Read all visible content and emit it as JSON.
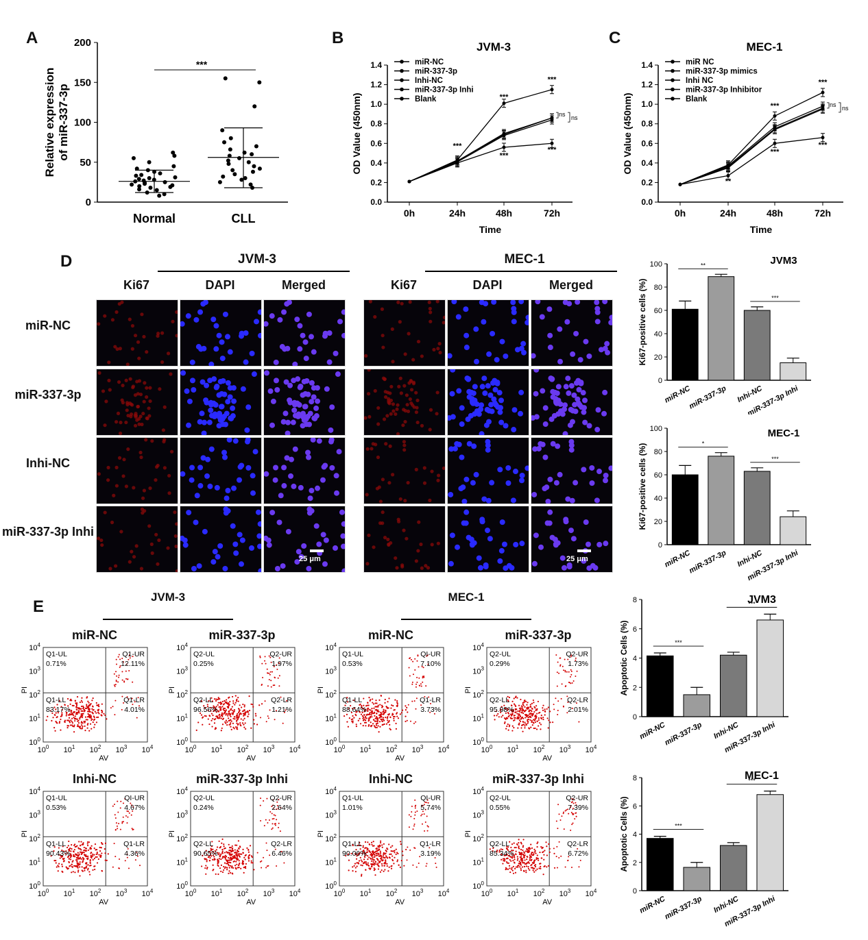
{
  "panels": {
    "A": "A",
    "B": "B",
    "C": "C",
    "D": "D",
    "E": "E"
  },
  "colors": {
    "red": "#d40000",
    "blue": "#1b1bff",
    "black": "#000000",
    "bar_dark": "#000000",
    "bar_mid": "#9c9c9c",
    "bar_gray": "#7a7a7a",
    "bar_light": "#d7d7d7"
  },
  "chart_data": [
    {
      "id": "A",
      "type": "scatter",
      "ylabel_line1": "Relative expression",
      "ylabel_line2": "of miR-337-3p",
      "categories": [
        "Normal",
        "CLL"
      ],
      "yticks": [
        "0",
        "50",
        "100",
        "150",
        "200"
      ],
      "ylim": [
        0,
        200
      ],
      "significance": "***",
      "summary": [
        {
          "name": "Normal",
          "mean": 26,
          "sd_low": 12,
          "sd_high": 40
        },
        {
          "name": "CLL",
          "mean": 56,
          "sd_low": 18,
          "sd_high": 93
        }
      ],
      "points": {
        "Normal": [
          62,
          58,
          55,
          50,
          45,
          42,
          40,
          38,
          36,
          34,
          33,
          31,
          30,
          29,
          28,
          27,
          26,
          25,
          24,
          23,
          22,
          21,
          20,
          19,
          18,
          16,
          15,
          12,
          10,
          8
        ],
        "CLL": [
          155,
          150,
          120,
          90,
          80,
          75,
          70,
          66,
          62,
          60,
          58,
          55,
          52,
          50,
          48,
          45,
          42,
          40,
          38,
          35,
          32,
          30,
          28,
          25,
          22,
          18
        ]
      }
    },
    {
      "id": "B",
      "type": "line",
      "title": "JVM-3",
      "xlabel": "Time",
      "ylabel": "OD Value (450nm)",
      "categories": [
        "0h",
        "24h",
        "48h",
        "72h"
      ],
      "yticks": [
        "0.0",
        "0.2",
        "0.4",
        "0.6",
        "0.8",
        "1.0",
        "1.2",
        "1.4"
      ],
      "ylim": [
        0,
        1.4
      ],
      "series": [
        {
          "name": "miR-NC",
          "values": [
            0.21,
            0.42,
            0.69,
            0.86
          ]
        },
        {
          "name": "miR-337-3p",
          "values": [
            0.21,
            0.43,
            1.01,
            1.15
          ]
        },
        {
          "name": "Inhi-NC",
          "values": [
            0.21,
            0.41,
            0.68,
            0.84
          ]
        },
        {
          "name": "miR-337-3p Inhi",
          "values": [
            0.21,
            0.4,
            0.56,
            0.6
          ]
        },
        {
          "name": "Blank",
          "values": [
            0.21,
            0.42,
            0.7,
            0.86
          ]
        }
      ],
      "annotations": [
        {
          "x": "24h",
          "y": 0.55,
          "text": "***"
        },
        {
          "x": "48h",
          "y": 1.05,
          "text": "***"
        },
        {
          "x": "72h",
          "y": 1.23,
          "text": "***"
        },
        {
          "x": "48h",
          "y": 0.45,
          "text": "***"
        },
        {
          "x": "72h",
          "y": 0.51,
          "text": "***"
        }
      ],
      "ns1": "ns",
      "ns2": "ns"
    },
    {
      "id": "C",
      "type": "line",
      "title": "MEC-1",
      "xlabel": "Time",
      "ylabel": "OD Value (450nm)",
      "categories": [
        "0h",
        "24h",
        "48h",
        "72h"
      ],
      "yticks": [
        "0.0",
        "0.2",
        "0.4",
        "0.6",
        "0.8",
        "1.0",
        "1.2",
        "1.4"
      ],
      "ylim": [
        0,
        1.4
      ],
      "series": [
        {
          "name": "miR NC",
          "values": [
            0.18,
            0.36,
            0.75,
            0.96
          ]
        },
        {
          "name": "miR-337-3p mimics",
          "values": [
            0.18,
            0.38,
            0.88,
            1.12
          ]
        },
        {
          "name": "Inhi NC",
          "values": [
            0.18,
            0.35,
            0.74,
            0.95
          ]
        },
        {
          "name": "miR-337-3p Inhibitor",
          "values": [
            0.18,
            0.27,
            0.6,
            0.66
          ]
        },
        {
          "name": "Blank",
          "values": [
            0.18,
            0.37,
            0.77,
            0.98
          ]
        }
      ],
      "annotations": [
        {
          "x": "24h",
          "y": 0.19,
          "text": "**"
        },
        {
          "x": "48h",
          "y": 0.96,
          "text": "***"
        },
        {
          "x": "72h",
          "y": 1.2,
          "text": "***"
        },
        {
          "x": "48h",
          "y": 0.49,
          "text": "***"
        },
        {
          "x": "72h",
          "y": 0.56,
          "text": "***"
        }
      ],
      "ns1": "ns",
      "ns2": "ns"
    },
    {
      "id": "D-JVM3",
      "type": "bar",
      "title": "JVM3",
      "ylabel": "Ki67-positive cells (%)",
      "categories": [
        "miR-NC",
        "miR-337-3p",
        "Inhi-NC",
        "miR-337-3p Inhi"
      ],
      "values": [
        61,
        89,
        60,
        15
      ],
      "errors": [
        7,
        2,
        3,
        4
      ],
      "yticks": [
        "0",
        "20",
        "40",
        "60",
        "80",
        "100"
      ],
      "ylim": [
        0,
        100
      ],
      "sig": [
        {
          "from": 0,
          "to": 1,
          "text": "**"
        },
        {
          "from": 2,
          "to": 3,
          "text": "***"
        }
      ]
    },
    {
      "id": "D-MEC1",
      "type": "bar",
      "title": "MEC-1",
      "ylabel": "Ki67-positive cells (%)",
      "categories": [
        "miR-NC",
        "miR-337-3p",
        "Inhi-NC",
        "miR-337-3p Inhi"
      ],
      "values": [
        60,
        76,
        63,
        24
      ],
      "errors": [
        8,
        3,
        3,
        5
      ],
      "yticks": [
        "0",
        "20",
        "40",
        "60",
        "80",
        "100"
      ],
      "ylim": [
        0,
        100
      ],
      "sig": [
        {
          "from": 0,
          "to": 1,
          "text": "*"
        },
        {
          "from": 2,
          "to": 3,
          "text": "***"
        }
      ]
    },
    {
      "id": "E-JVM3",
      "type": "bar",
      "title": "JVM3",
      "ylabel": "Apoptotic Cells (%)",
      "categories": [
        "miR-NC",
        "miR-337-3p",
        "Inhi-NC",
        "miR-337-3p Inhi"
      ],
      "values": [
        4.15,
        1.5,
        4.2,
        6.6
      ],
      "errors": [
        0.2,
        0.5,
        0.2,
        0.4
      ],
      "yticks": [
        "0",
        "2",
        "4",
        "6",
        "8"
      ],
      "ylim": [
        0,
        8
      ],
      "sig": [
        {
          "from": 0,
          "to": 1,
          "text": "***"
        },
        {
          "from": 2,
          "to": 3,
          "text": "***"
        }
      ]
    },
    {
      "id": "E-MEC1",
      "type": "bar",
      "title": "MEC-1",
      "ylabel": "Apoptotic Cells (%)",
      "categories": [
        "miR-NC",
        "miR-337-3p",
        "Inhi-NC",
        "miR-337-3p Inhi"
      ],
      "values": [
        3.7,
        1.65,
        3.2,
        6.8
      ],
      "errors": [
        0.15,
        0.35,
        0.2,
        0.25
      ],
      "yticks": [
        "0",
        "2",
        "4",
        "6",
        "8"
      ],
      "ylim": [
        0,
        8
      ],
      "sig": [
        {
          "from": 0,
          "to": 1,
          "text": "***"
        },
        {
          "from": 2,
          "to": 3,
          "text": "***"
        }
      ]
    }
  ],
  "microscopy": {
    "groups": [
      {
        "title": "JVM-3"
      },
      {
        "title": "MEC-1"
      }
    ],
    "columns": [
      "Ki67",
      "DAPI",
      "Merged"
    ],
    "rows": [
      "miR-NC",
      "miR-337-3p",
      "Inhi-NC",
      "miR-337-3p Inhi"
    ],
    "scale_bar": "25 μm"
  },
  "flow": {
    "groups": [
      {
        "title": "JVM-3"
      },
      {
        "title": "MEC-1"
      }
    ],
    "axis_x": "AV",
    "axis_y": "PI",
    "ticks": [
      "0",
      "1",
      "2",
      "3",
      "4"
    ],
    "plots": [
      {
        "title": "miR-NC",
        "ul": "Q1-UL",
        "ul_v": "0.71%",
        "ur": "Q1-UR",
        "ur_v": "12.11%",
        "ll": "Q1-LL",
        "ll_v": "83.17%",
        "lr": "Q1-LR",
        "lr_v": "4.01%"
      },
      {
        "title": "miR-337-3p",
        "ul": "Q2-UL",
        "ul_v": "0.25%",
        "ur": "Q2-UR",
        "ur_v": "1.97%",
        "ll": "Q2-LL",
        "ll_v": "96.56%",
        "lr": "Q2-LR",
        "lr_v": "1.21%"
      },
      {
        "title": "miR-NC",
        "ul": "Q1-UL",
        "ul_v": "0.53%",
        "ur": "QI-UR",
        "ur_v": "7.10%",
        "ll": "Q1-LL",
        "ll_v": "88.64%",
        "lr": "Q1-LR",
        "lr_v": "3.73%"
      },
      {
        "title": "miR-337-3p",
        "ul": "Q2-UL",
        "ul_v": "0.29%",
        "ur": "Q2-UR",
        "ur_v": "1.73%",
        "ll": "Q2-LL",
        "ll_v": "95.98%",
        "lr": "Q2-LR",
        "lr_v": "2.01%"
      },
      {
        "title": "Inhi-NC",
        "ul": "Q1-UL",
        "ul_v": "0.53%",
        "ur": "QI-UR",
        "ur_v": "4.67%",
        "ll": "Q1-LL",
        "ll_v": "90.43%",
        "lr": "Q1-LR",
        "lr_v": "4.36%"
      },
      {
        "title": "miR-337-3p Inhi",
        "ul": "Q2-UL",
        "ul_v": "0.24%",
        "ur": "Q2-UR",
        "ur_v": "2.64%",
        "ll": "Q2-LL",
        "ll_v": "90.65%",
        "lr": "Q2-LR",
        "lr_v": "6.46%"
      },
      {
        "title": "Inhi-NC",
        "ul": "Q1-UL",
        "ul_v": "1.01%",
        "ur": "QI-UR",
        "ur_v": "5.74%",
        "ll": "Q1-LL",
        "ll_v": "90.06%",
        "lr": "Q1-LR",
        "lr_v": "3.19%"
      },
      {
        "title": "miR-337-3p Inhi",
        "ul": "Q2-UL",
        "ul_v": "0.55%",
        "ur": "Q2-UR",
        "ur_v": "7.39%",
        "ll": "Q2-LL",
        "ll_v": "85.34%",
        "lr": "Q2-LR",
        "lr_v": "6.72%"
      }
    ]
  }
}
